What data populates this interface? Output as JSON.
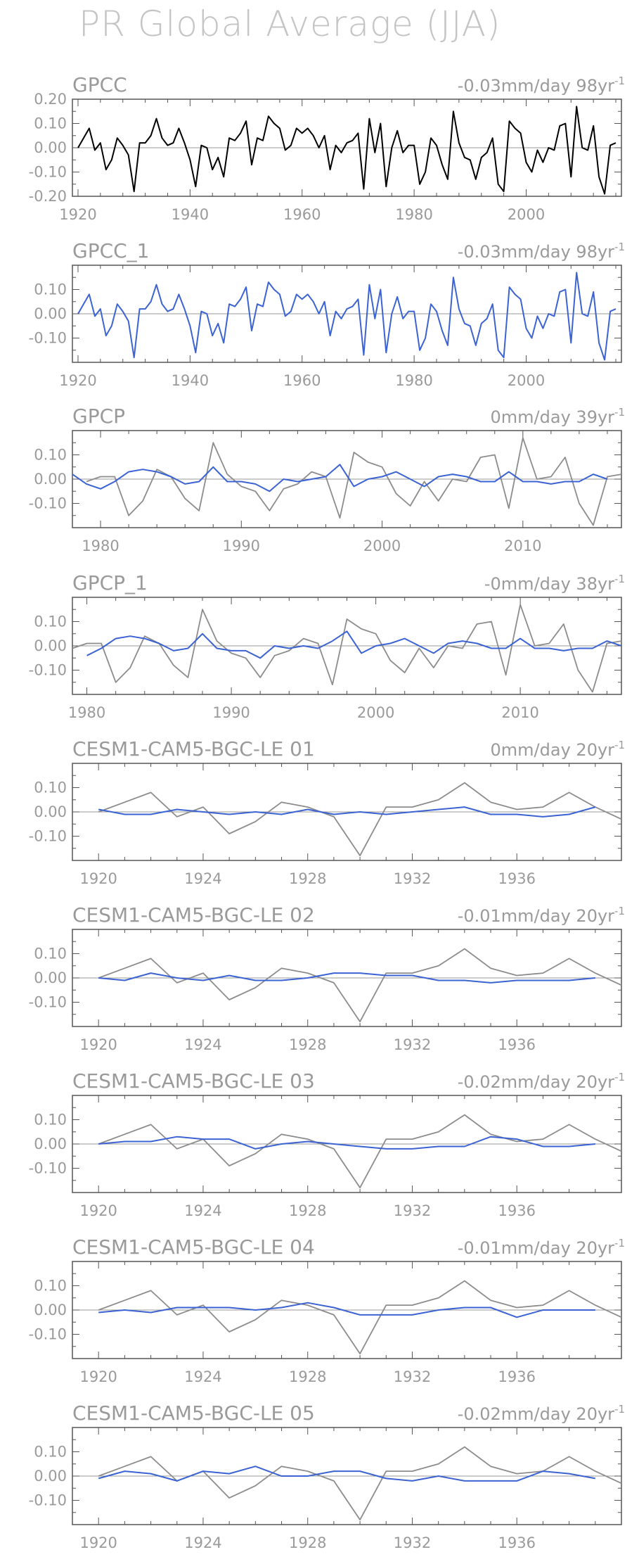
{
  "title": "PR Global Average (JJA)",
  "colors": {
    "obs": "#000000",
    "model": "#3b63d3",
    "ref": "#8c8c8c",
    "axis": "#555555",
    "zero": "#999999",
    "text": "#9a9a9a"
  },
  "chart_data": [
    {
      "type": "line",
      "panel_title": "GPCC",
      "trend_label": "-0.03mm/day 98yr",
      "trend_sup": "-1",
      "xlim": [
        1919,
        2017
      ],
      "ylim": [
        -0.2,
        0.2
      ],
      "xticks": [
        1920,
        1940,
        1960,
        1980,
        2000
      ],
      "yticks": [
        -0.2,
        -0.1,
        0.0,
        0.1,
        0.2
      ],
      "ytick_labels": [
        "-0.20",
        "-0.10",
        "0.00",
        "0.10",
        "0.20"
      ],
      "series": [
        {
          "role": "obs",
          "x_start": 1920,
          "values": [
            0.0,
            0.04,
            0.08,
            -0.01,
            0.02,
            -0.09,
            -0.05,
            0.04,
            0.01,
            -0.03,
            -0.18,
            0.02,
            0.02,
            0.05,
            0.12,
            0.04,
            0.01,
            0.02,
            0.08,
            0.02,
            -0.05,
            -0.16,
            0.01,
            0.0,
            -0.09,
            -0.04,
            -0.12,
            0.04,
            0.03,
            0.06,
            0.11,
            -0.07,
            0.04,
            0.03,
            0.13,
            0.1,
            0.08,
            -0.01,
            0.01,
            0.08,
            0.06,
            0.08,
            0.05,
            0.0,
            0.05,
            -0.09,
            0.01,
            -0.02,
            0.02,
            0.03,
            0.06,
            -0.17,
            0.12,
            -0.02,
            0.1,
            -0.16,
            0.0,
            0.07,
            -0.02,
            0.01,
            0.01,
            -0.15,
            -0.1,
            0.04,
            0.01,
            -0.07,
            -0.13,
            0.15,
            0.02,
            -0.04,
            -0.05,
            -0.13,
            -0.04,
            -0.02,
            0.04,
            -0.15,
            -0.18,
            0.11,
            0.08,
            0.06,
            -0.06,
            -0.1,
            -0.01,
            -0.06,
            0.0,
            -0.01,
            0.09,
            0.1,
            -0.12,
            0.17,
            0.0,
            -0.01,
            0.09,
            -0.12,
            -0.19,
            0.01,
            0.02
          ]
        }
      ]
    },
    {
      "type": "line",
      "panel_title": "GPCC_1",
      "trend_label": "-0.03mm/day 98yr",
      "trend_sup": "-1",
      "xlim": [
        1919,
        2017
      ],
      "ylim": [
        -0.2,
        0.2
      ],
      "xticks": [
        1920,
        1940,
        1960,
        1980,
        2000
      ],
      "yticks": [
        -0.1,
        0.0,
        0.1
      ],
      "ytick_labels": [
        "-0.10",
        "0.00",
        "0.10"
      ],
      "series": [
        {
          "role": "model",
          "x_start": 1920,
          "values": [
            0.0,
            0.04,
            0.08,
            -0.01,
            0.02,
            -0.09,
            -0.05,
            0.04,
            0.01,
            -0.03,
            -0.18,
            0.02,
            0.02,
            0.05,
            0.12,
            0.04,
            0.01,
            0.02,
            0.08,
            0.02,
            -0.05,
            -0.16,
            0.01,
            0.0,
            -0.09,
            -0.04,
            -0.12,
            0.04,
            0.03,
            0.06,
            0.11,
            -0.07,
            0.04,
            0.03,
            0.13,
            0.1,
            0.08,
            -0.01,
            0.01,
            0.08,
            0.06,
            0.08,
            0.05,
            0.0,
            0.05,
            -0.09,
            0.01,
            -0.02,
            0.02,
            0.03,
            0.06,
            -0.17,
            0.12,
            -0.02,
            0.1,
            -0.16,
            0.0,
            0.07,
            -0.02,
            0.01,
            0.01,
            -0.15,
            -0.1,
            0.04,
            0.01,
            -0.07,
            -0.13,
            0.15,
            0.02,
            -0.04,
            -0.05,
            -0.13,
            -0.04,
            -0.02,
            0.04,
            -0.15,
            -0.18,
            0.11,
            0.08,
            0.06,
            -0.06,
            -0.1,
            -0.01,
            -0.06,
            0.0,
            -0.01,
            0.09,
            0.1,
            -0.12,
            0.17,
            0.0,
            -0.01,
            0.09,
            -0.12,
            -0.19,
            0.01,
            0.02
          ]
        }
      ]
    },
    {
      "type": "line",
      "panel_title": "GPCP",
      "trend_label": "0mm/day 39yr",
      "trend_sup": "-1",
      "xlim": [
        1978,
        2017
      ],
      "ylim": [
        -0.2,
        0.2
      ],
      "xticks": [
        1980,
        1990,
        2000,
        2010
      ],
      "yticks": [
        -0.1,
        0.0,
        0.1
      ],
      "ytick_labels": [
        "-0.10",
        "0.00",
        "0.10"
      ],
      "series": [
        {
          "role": "ref",
          "x_start": 1979,
          "values": [
            -0.01,
            0.01,
            0.01,
            -0.15,
            -0.09,
            0.04,
            0.01,
            -0.08,
            -0.13,
            0.15,
            0.02,
            -0.03,
            -0.05,
            -0.13,
            -0.04,
            -0.02,
            0.03,
            0.01,
            -0.16,
            0.11,
            0.07,
            0.05,
            -0.06,
            -0.11,
            -0.01,
            -0.09,
            0.0,
            -0.01,
            0.09,
            0.1,
            -0.12,
            0.17,
            0.0,
            0.01,
            0.09,
            -0.1,
            -0.19,
            0.01,
            0.02
          ]
        },
        {
          "role": "model",
          "x_start": 1978,
          "values": [
            0.02,
            -0.02,
            -0.04,
            -0.01,
            0.03,
            0.04,
            0.03,
            0.01,
            -0.02,
            -0.01,
            0.05,
            -0.01,
            -0.01,
            -0.02,
            -0.05,
            0.0,
            -0.01,
            0.0,
            0.01,
            0.06,
            -0.03,
            0.0,
            0.01,
            0.03,
            0.0,
            -0.03,
            0.01,
            0.02,
            0.01,
            -0.01,
            -0.01,
            0.03,
            -0.01,
            -0.01,
            -0.02,
            -0.01,
            -0.01,
            0.02,
            0.0
          ]
        }
      ]
    },
    {
      "type": "line",
      "panel_title": "GPCP_1",
      "trend_label": "-0mm/day 38yr",
      "trend_sup": "-1",
      "xlim": [
        1979,
        2017
      ],
      "ylim": [
        -0.2,
        0.2
      ],
      "xticks": [
        1980,
        1990,
        2000,
        2010
      ],
      "yticks": [
        -0.1,
        0.0,
        0.1
      ],
      "ytick_labels": [
        "-0.10",
        "0.00",
        "0.10"
      ],
      "series": [
        {
          "role": "ref",
          "x_start": 1979,
          "values": [
            -0.01,
            0.01,
            0.01,
            -0.15,
            -0.09,
            0.04,
            0.01,
            -0.08,
            -0.13,
            0.15,
            0.02,
            -0.03,
            -0.05,
            -0.13,
            -0.04,
            -0.02,
            0.03,
            0.01,
            -0.16,
            0.11,
            0.07,
            0.05,
            -0.06,
            -0.11,
            -0.01,
            -0.09,
            0.0,
            -0.01,
            0.09,
            0.1,
            -0.12,
            0.17,
            0.0,
            0.01,
            0.09,
            -0.1,
            -0.19,
            0.01,
            0.02
          ]
        },
        {
          "role": "model",
          "x_start": 1980,
          "values": [
            -0.04,
            -0.01,
            0.03,
            0.04,
            0.03,
            0.01,
            -0.02,
            -0.01,
            0.05,
            -0.01,
            -0.02,
            -0.02,
            -0.05,
            0.0,
            -0.01,
            0.0,
            -0.01,
            0.02,
            0.06,
            -0.03,
            0.0,
            0.01,
            0.03,
            0.0,
            -0.03,
            0.01,
            0.02,
            0.01,
            -0.01,
            -0.01,
            0.03,
            -0.01,
            -0.01,
            -0.02,
            -0.01,
            -0.01,
            0.02,
            0.0
          ]
        }
      ]
    },
    {
      "type": "line",
      "panel_title": "CESM1-CAM5-BGC-LE 01",
      "trend_label": "0mm/day 20yr",
      "trend_sup": "-1",
      "xlim": [
        1919,
        1940
      ],
      "ylim": [
        -0.2,
        0.2
      ],
      "xticks": [
        1920,
        1924,
        1928,
        1932,
        1936
      ],
      "yticks": [
        -0.1,
        0.0,
        0.1
      ],
      "ytick_labels": [
        "-0.10",
        "0.00",
        "0.10"
      ],
      "series": [
        {
          "role": "ref",
          "x_start": 1920,
          "values": [
            0.0,
            0.04,
            0.08,
            -0.02,
            0.02,
            -0.09,
            -0.04,
            0.04,
            0.02,
            -0.02,
            -0.18,
            0.02,
            0.02,
            0.05,
            0.12,
            0.04,
            0.01,
            0.02,
            0.08,
            0.02,
            -0.03
          ]
        },
        {
          "role": "model",
          "x_start": 1920,
          "values": [
            0.01,
            -0.01,
            -0.01,
            0.01,
            0.0,
            -0.01,
            0.0,
            -0.01,
            0.01,
            -0.01,
            0.0,
            -0.01,
            0.0,
            0.01,
            0.02,
            -0.01,
            -0.01,
            -0.02,
            -0.01,
            0.02
          ]
        }
      ]
    },
    {
      "type": "line",
      "panel_title": "CESM1-CAM5-BGC-LE 02",
      "trend_label": "-0.01mm/day 20yr",
      "trend_sup": "-1",
      "xlim": [
        1919,
        1940
      ],
      "ylim": [
        -0.2,
        0.2
      ],
      "xticks": [
        1920,
        1924,
        1928,
        1932,
        1936
      ],
      "yticks": [
        -0.1,
        0.0,
        0.1
      ],
      "ytick_labels": [
        "-0.10",
        "0.00",
        "0.10"
      ],
      "series": [
        {
          "role": "ref",
          "x_start": 1920,
          "values": [
            0.0,
            0.04,
            0.08,
            -0.02,
            0.02,
            -0.09,
            -0.04,
            0.04,
            0.02,
            -0.02,
            -0.18,
            0.02,
            0.02,
            0.05,
            0.12,
            0.04,
            0.01,
            0.02,
            0.08,
            0.02,
            -0.03
          ]
        },
        {
          "role": "model",
          "x_start": 1920,
          "values": [
            0.0,
            -0.01,
            0.02,
            0.0,
            -0.01,
            0.01,
            -0.01,
            -0.01,
            0.0,
            0.02,
            0.02,
            0.01,
            0.01,
            -0.01,
            -0.01,
            -0.02,
            -0.01,
            -0.01,
            -0.01,
            0.0
          ]
        }
      ]
    },
    {
      "type": "line",
      "panel_title": "CESM1-CAM5-BGC-LE 03",
      "trend_label": "-0.02mm/day 20yr",
      "trend_sup": "-1",
      "xlim": [
        1919,
        1940
      ],
      "ylim": [
        -0.2,
        0.2
      ],
      "xticks": [
        1920,
        1924,
        1928,
        1932,
        1936
      ],
      "yticks": [
        -0.1,
        0.0,
        0.1
      ],
      "ytick_labels": [
        "-0.10",
        "0.00",
        "0.10"
      ],
      "series": [
        {
          "role": "ref",
          "x_start": 1920,
          "values": [
            0.0,
            0.04,
            0.08,
            -0.02,
            0.02,
            -0.09,
            -0.04,
            0.04,
            0.02,
            -0.02,
            -0.18,
            0.02,
            0.02,
            0.05,
            0.12,
            0.04,
            0.01,
            0.02,
            0.08,
            0.02,
            -0.03
          ]
        },
        {
          "role": "model",
          "x_start": 1920,
          "values": [
            0.0,
            0.01,
            0.01,
            0.03,
            0.02,
            0.02,
            -0.02,
            0.0,
            0.01,
            0.0,
            -0.01,
            -0.02,
            -0.02,
            -0.01,
            -0.01,
            0.03,
            0.02,
            -0.01,
            -0.01,
            0.0
          ]
        }
      ]
    },
    {
      "type": "line",
      "panel_title": "CESM1-CAM5-BGC-LE 04",
      "trend_label": "-0.01mm/day 20yr",
      "trend_sup": "-1",
      "xlim": [
        1919,
        1940
      ],
      "ylim": [
        -0.2,
        0.2
      ],
      "xticks": [
        1920,
        1924,
        1928,
        1932,
        1936
      ],
      "yticks": [
        -0.1,
        0.0,
        0.1
      ],
      "ytick_labels": [
        "-0.10",
        "0.00",
        "0.10"
      ],
      "series": [
        {
          "role": "ref",
          "x_start": 1920,
          "values": [
            0.0,
            0.04,
            0.08,
            -0.02,
            0.02,
            -0.09,
            -0.04,
            0.04,
            0.02,
            -0.02,
            -0.18,
            0.02,
            0.02,
            0.05,
            0.12,
            0.04,
            0.01,
            0.02,
            0.08,
            0.02,
            -0.03
          ]
        },
        {
          "role": "model",
          "x_start": 1920,
          "values": [
            -0.01,
            0.0,
            -0.01,
            0.01,
            0.01,
            0.01,
            0.0,
            0.01,
            0.03,
            0.01,
            -0.02,
            -0.02,
            -0.02,
            0.0,
            0.01,
            0.01,
            -0.03,
            0.0,
            0.0,
            0.0
          ]
        }
      ]
    },
    {
      "type": "line",
      "panel_title": "CESM1-CAM5-BGC-LE 05",
      "trend_label": "-0.02mm/day 20yr",
      "trend_sup": "-1",
      "xlim": [
        1919,
        1940
      ],
      "ylim": [
        -0.2,
        0.2
      ],
      "xticks": [
        1920,
        1924,
        1928,
        1932,
        1936
      ],
      "yticks": [
        -0.1,
        0.0,
        0.1
      ],
      "ytick_labels": [
        "-0.10",
        "0.00",
        "0.10"
      ],
      "series": [
        {
          "role": "ref",
          "x_start": 1920,
          "values": [
            0.0,
            0.04,
            0.08,
            -0.02,
            0.02,
            -0.09,
            -0.04,
            0.04,
            0.02,
            -0.02,
            -0.18,
            0.02,
            0.02,
            0.05,
            0.12,
            0.04,
            0.01,
            0.02,
            0.08,
            0.02,
            -0.03
          ]
        },
        {
          "role": "model",
          "x_start": 1920,
          "values": [
            -0.01,
            0.02,
            0.01,
            -0.02,
            0.02,
            0.01,
            0.04,
            0.0,
            0.0,
            0.02,
            0.02,
            -0.01,
            -0.02,
            0.0,
            -0.02,
            -0.02,
            -0.02,
            0.02,
            0.01,
            -0.01
          ]
        }
      ]
    }
  ]
}
